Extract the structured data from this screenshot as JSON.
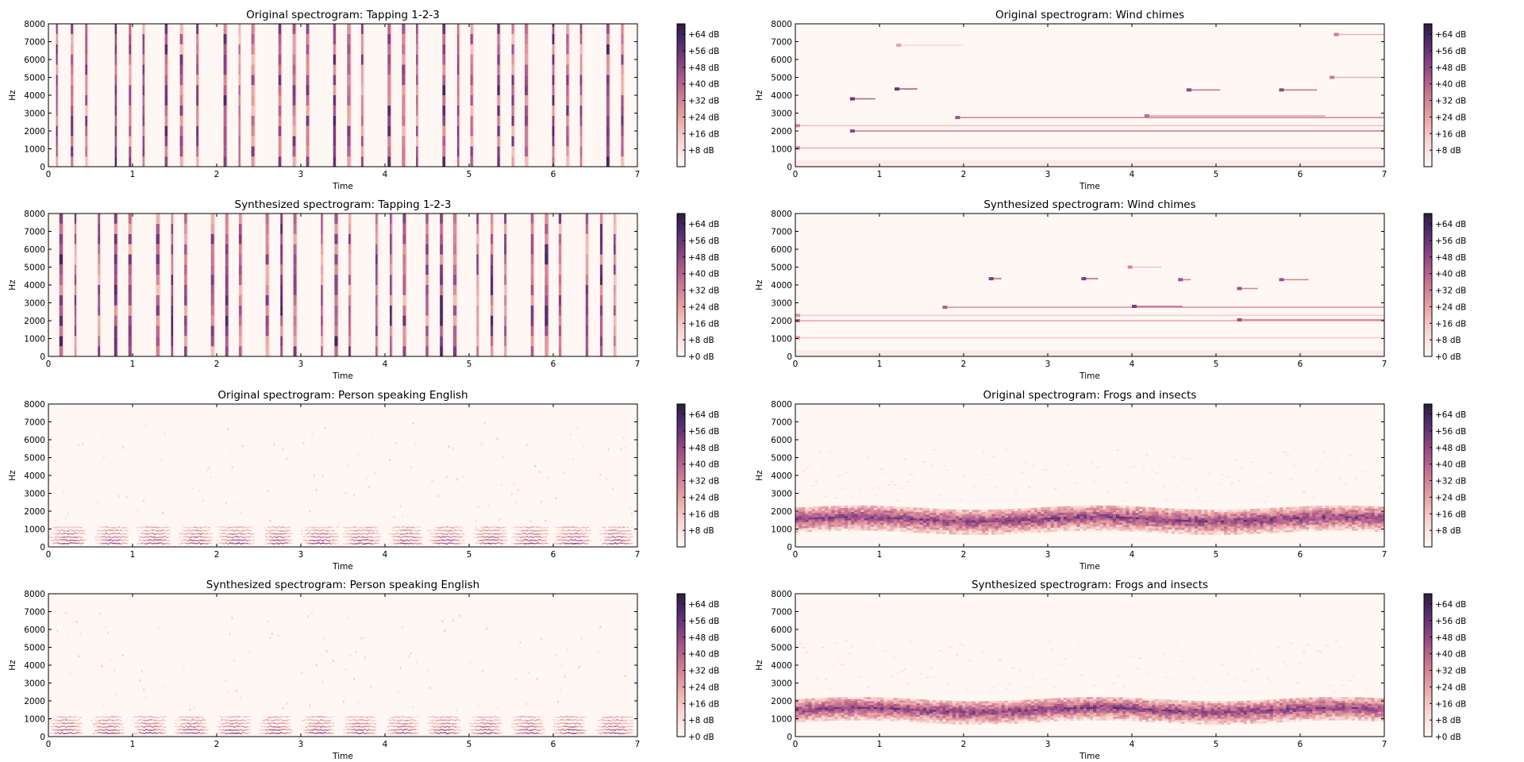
{
  "chart_data": [
    {
      "type": "heatmap",
      "title": "Original spectrogram: Tapping  1-2-3",
      "xlabel": "Time",
      "ylabel": "Hz",
      "xlim": [
        0,
        7
      ],
      "ylim": [
        0,
        8000
      ],
      "x_ticks": [
        0,
        1,
        2,
        3,
        4,
        5,
        6,
        7
      ],
      "y_ticks": [
        0,
        1000,
        2000,
        3000,
        4000,
        5000,
        6000,
        7000,
        8000
      ],
      "colorbar_ticks": [
        "+64 dB",
        "+56 dB",
        "+48 dB",
        "+40 dB",
        "+32 dB",
        "+24 dB",
        "+16 dB",
        "+8 dB"
      ],
      "colorbar_values": [
        64,
        56,
        48,
        40,
        32,
        24,
        16,
        8
      ],
      "colorbar_range": [
        0,
        69
      ],
      "pattern": "transients",
      "onset_times": [
        0.1,
        0.28,
        0.45,
        0.8,
        0.97,
        1.13,
        1.4,
        1.58,
        1.77,
        2.1,
        2.27,
        2.43,
        2.75,
        2.92,
        3.08,
        3.4,
        3.57,
        3.73,
        4.05,
        4.22,
        4.38,
        4.7,
        4.87,
        5.03,
        5.35,
        5.52,
        5.68,
        6.0,
        6.17,
        6.33,
        6.65,
        6.82
      ]
    },
    {
      "type": "heatmap",
      "title": "Original spectrogram: Wind chimes",
      "xlabel": "Time",
      "ylabel": "Hz",
      "xlim": [
        0,
        7
      ],
      "ylim": [
        0,
        8000
      ],
      "x_ticks": [
        0,
        1,
        2,
        3,
        4,
        5,
        6,
        7
      ],
      "y_ticks": [
        0,
        1000,
        2000,
        3000,
        4000,
        5000,
        6000,
        7000,
        8000
      ],
      "colorbar_ticks": [
        "+64 dB",
        "+56 dB",
        "+48 dB",
        "+40 dB",
        "+32 dB",
        "+24 dB",
        "+16 dB",
        "+8 dB"
      ],
      "colorbar_values": [
        64,
        56,
        48,
        40,
        32,
        24,
        16,
        8
      ],
      "colorbar_range": [
        0,
        69
      ],
      "pattern": "tonal",
      "partials": [
        {
          "hz": 1050,
          "t0": 0.0,
          "t1": 7.0,
          "level": 0.3
        },
        {
          "hz": 2000,
          "t0": 0.65,
          "t1": 7.0,
          "level": 0.5
        },
        {
          "hz": 2300,
          "t0": 0.0,
          "t1": 7.0,
          "level": 0.25
        },
        {
          "hz": 2750,
          "t0": 1.9,
          "t1": 7.0,
          "level": 0.45
        },
        {
          "hz": 2850,
          "t0": 4.15,
          "t1": 6.3,
          "level": 0.35
        },
        {
          "hz": 3800,
          "t0": 0.65,
          "t1": 0.95,
          "level": 0.6
        },
        {
          "hz": 4350,
          "t0": 1.18,
          "t1": 1.45,
          "level": 0.6
        },
        {
          "hz": 4300,
          "t0": 4.65,
          "t1": 5.05,
          "level": 0.5
        },
        {
          "hz": 4300,
          "t0": 5.75,
          "t1": 6.2,
          "level": 0.5
        },
        {
          "hz": 5000,
          "t0": 6.35,
          "t1": 7.0,
          "level": 0.3
        },
        {
          "hz": 7400,
          "t0": 6.4,
          "t1": 7.0,
          "level": 0.3
        },
        {
          "hz": 6800,
          "t0": 1.2,
          "t1": 2.0,
          "level": 0.15
        }
      ]
    },
    {
      "type": "heatmap",
      "title": "Synthesized spectrogram: Tapping  1-2-3",
      "xlabel": "Time",
      "ylabel": "Hz",
      "xlim": [
        0,
        7
      ],
      "ylim": [
        0,
        8000
      ],
      "x_ticks": [
        0,
        1,
        2,
        3,
        4,
        5,
        6,
        7
      ],
      "y_ticks": [
        0,
        1000,
        2000,
        3000,
        4000,
        5000,
        6000,
        7000,
        8000
      ],
      "colorbar_ticks": [
        "+64 dB",
        "+56 dB",
        "+48 dB",
        "+40 dB",
        "+32 dB",
        "+24 dB",
        "+16 dB",
        "+8 dB",
        "+0 dB"
      ],
      "colorbar_values": [
        64,
        56,
        48,
        40,
        32,
        24,
        16,
        8,
        0
      ],
      "colorbar_range": [
        0,
        69
      ],
      "pattern": "transients",
      "onset_times": [
        0.15,
        0.32,
        0.6,
        0.8,
        0.97,
        1.3,
        1.47,
        1.63,
        1.95,
        2.12,
        2.28,
        2.6,
        2.77,
        2.93,
        3.25,
        3.42,
        3.58,
        3.9,
        4.07,
        4.23,
        4.5,
        4.67,
        4.83,
        5.1,
        5.27,
        5.43,
        5.75,
        5.92,
        6.08,
        6.4,
        6.57,
        6.73
      ]
    },
    {
      "type": "heatmap",
      "title": "Synthesized spectrogram: Wind chimes",
      "xlabel": "Time",
      "ylabel": "Hz",
      "xlim": [
        0,
        7
      ],
      "ylim": [
        0,
        8000
      ],
      "x_ticks": [
        0,
        1,
        2,
        3,
        4,
        5,
        6,
        7
      ],
      "y_ticks": [
        0,
        1000,
        2000,
        3000,
        4000,
        5000,
        6000,
        7000,
        8000
      ],
      "colorbar_ticks": [
        "+64 dB",
        "+56 dB",
        "+48 dB",
        "+40 dB",
        "+32 dB",
        "+24 dB",
        "+16 dB",
        "+8 dB",
        "+0 dB"
      ],
      "colorbar_values": [
        64,
        56,
        48,
        40,
        32,
        24,
        16,
        8,
        0
      ],
      "colorbar_range": [
        0,
        69
      ],
      "pattern": "tonal",
      "partials": [
        {
          "hz": 1050,
          "t0": 0.0,
          "t1": 7.0,
          "level": 0.2
        },
        {
          "hz": 2000,
          "t0": 0.0,
          "t1": 7.0,
          "level": 0.35
        },
        {
          "hz": 2300,
          "t0": 0.0,
          "t1": 7.0,
          "level": 0.2
        },
        {
          "hz": 2750,
          "t0": 1.75,
          "t1": 7.0,
          "level": 0.4
        },
        {
          "hz": 2800,
          "t0": 4.0,
          "t1": 4.6,
          "level": 0.55
        },
        {
          "hz": 2050,
          "t0": 5.25,
          "t1": 7.0,
          "level": 0.45
        },
        {
          "hz": 4350,
          "t0": 2.3,
          "t1": 2.45,
          "level": 0.55
        },
        {
          "hz": 4350,
          "t0": 3.4,
          "t1": 3.6,
          "level": 0.55
        },
        {
          "hz": 4300,
          "t0": 4.55,
          "t1": 4.7,
          "level": 0.45
        },
        {
          "hz": 3800,
          "t0": 5.25,
          "t1": 5.5,
          "level": 0.45
        },
        {
          "hz": 4300,
          "t0": 5.75,
          "t1": 6.1,
          "level": 0.45
        },
        {
          "hz": 5000,
          "t0": 3.95,
          "t1": 4.35,
          "level": 0.25
        }
      ]
    },
    {
      "type": "heatmap",
      "title": "Original spectrogram: Person speaking English",
      "xlabel": "Time",
      "ylabel": "Hz",
      "xlim": [
        0,
        7
      ],
      "ylim": [
        0,
        8000
      ],
      "x_ticks": [
        0,
        1,
        2,
        3,
        4,
        5,
        6,
        7
      ],
      "y_ticks": [
        0,
        1000,
        2000,
        3000,
        4000,
        5000,
        6000,
        7000,
        8000
      ],
      "colorbar_ticks": [
        "+64 dB",
        "+56 dB",
        "+48 dB",
        "+40 dB",
        "+32 dB",
        "+24 dB",
        "+16 dB",
        "+8 dB"
      ],
      "colorbar_values": [
        64,
        56,
        48,
        40,
        32,
        24,
        16,
        8
      ],
      "colorbar_range": [
        0,
        69
      ],
      "pattern": "speech",
      "segments": [
        [
          0.0,
          0.45
        ],
        [
          0.55,
          0.95
        ],
        [
          1.05,
          1.45
        ],
        [
          1.55,
          1.95
        ],
        [
          2.0,
          2.45
        ],
        [
          2.55,
          2.9
        ],
        [
          3.0,
          3.45
        ],
        [
          3.5,
          3.95
        ],
        [
          4.05,
          4.45
        ],
        [
          4.5,
          4.95
        ],
        [
          5.05,
          5.45
        ],
        [
          5.5,
          5.95
        ],
        [
          6.0,
          6.45
        ],
        [
          6.55,
          6.95
        ]
      ]
    },
    {
      "type": "heatmap",
      "title": "Original spectrogram: Frogs and insects",
      "xlabel": "Time",
      "ylabel": "Hz",
      "xlim": [
        0,
        7
      ],
      "ylim": [
        0,
        8000
      ],
      "x_ticks": [
        0,
        1,
        2,
        3,
        4,
        5,
        6,
        7
      ],
      "y_ticks": [
        0,
        1000,
        2000,
        3000,
        4000,
        5000,
        6000,
        7000,
        8000
      ],
      "colorbar_ticks": [
        "+64 dB",
        "+56 dB",
        "+48 dB",
        "+40 dB",
        "+32 dB",
        "+24 dB",
        "+16 dB",
        "+8 dB"
      ],
      "colorbar_values": [
        64,
        56,
        48,
        40,
        32,
        24,
        16,
        8
      ],
      "colorbar_range": [
        0,
        69
      ],
      "pattern": "noise_band",
      "band_center_hz": 1500,
      "band_width_hz": 700
    },
    {
      "type": "heatmap",
      "title": "Synthesized spectrogram: Person speaking English",
      "xlabel": "Time",
      "ylabel": "Hz",
      "xlim": [
        0,
        7
      ],
      "ylim": [
        0,
        8000
      ],
      "x_ticks": [
        0,
        1,
        2,
        3,
        4,
        5,
        6,
        7
      ],
      "y_ticks": [
        0,
        1000,
        2000,
        3000,
        4000,
        5000,
        6000,
        7000,
        8000
      ],
      "colorbar_ticks": [
        "+64 dB",
        "+56 dB",
        "+48 dB",
        "+40 dB",
        "+32 dB",
        "+24 dB",
        "+16 dB",
        "+8 dB",
        "+0 dB"
      ],
      "colorbar_values": [
        64,
        56,
        48,
        40,
        32,
        24,
        16,
        8,
        0
      ],
      "colorbar_range": [
        0,
        69
      ],
      "pattern": "speech",
      "segments": [
        [
          0.0,
          0.4
        ],
        [
          0.5,
          0.9
        ],
        [
          1.0,
          1.4
        ],
        [
          1.5,
          1.9
        ],
        [
          2.0,
          2.4
        ],
        [
          2.5,
          2.9
        ],
        [
          3.0,
          3.4
        ],
        [
          3.5,
          3.9
        ],
        [
          4.0,
          4.4
        ],
        [
          4.5,
          4.9
        ],
        [
          5.0,
          5.4
        ],
        [
          5.5,
          5.9
        ],
        [
          6.0,
          6.4
        ],
        [
          6.5,
          6.95
        ]
      ]
    },
    {
      "type": "heatmap",
      "title": "Synthesized spectrogram: Frogs and insects",
      "xlabel": "Time",
      "ylabel": "Hz",
      "xlim": [
        0,
        7
      ],
      "ylim": [
        0,
        8000
      ],
      "x_ticks": [
        0,
        1,
        2,
        3,
        4,
        5,
        6,
        7
      ],
      "y_ticks": [
        0,
        1000,
        2000,
        3000,
        4000,
        5000,
        6000,
        7000,
        8000
      ],
      "colorbar_ticks": [
        "+64 dB",
        "+56 dB",
        "+48 dB",
        "+40 dB",
        "+32 dB",
        "+24 dB",
        "+16 dB",
        "+8 dB",
        "+0 dB"
      ],
      "colorbar_values": [
        64,
        56,
        48,
        40,
        32,
        24,
        16,
        8,
        0
      ],
      "colorbar_range": [
        0,
        69
      ],
      "pattern": "noise_band",
      "band_center_hz": 1450,
      "band_width_hz": 650
    }
  ],
  "colormap": [
    "#fff7f3",
    "#fbe3e0",
    "#f5c9c4",
    "#e9a8a8",
    "#d6879a",
    "#bd6890",
    "#9a4f86",
    "#73397a",
    "#4c2966",
    "#2d1e3e"
  ]
}
